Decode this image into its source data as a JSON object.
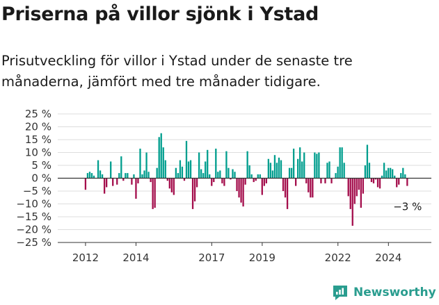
{
  "title": "Priserna på villor sjönk i Ystad",
  "subtitle": "Prisutveckling för villor i Ystad under de senaste tre månaderna, jämfört med tre månader tidigare.",
  "brand": {
    "name": "Newsworthy"
  },
  "colors": {
    "positive": "#009e8e",
    "negative": "#a40e4c",
    "axis": "#333333",
    "grid": "#dddddd",
    "brand": "#2a9d8f"
  },
  "chart_data": {
    "type": "bar",
    "ylabel": "",
    "ylim": [
      -25,
      25
    ],
    "y_ticks": [
      25,
      20,
      15,
      10,
      5,
      0,
      -5,
      -10,
      -15,
      -20,
      -25
    ],
    "y_tick_labels": [
      "25 %",
      "20 %",
      "15 %",
      "10 %",
      "5 %",
      "0 %",
      "−5 %",
      "−10 %",
      "−15 %",
      "−20 %",
      "−25 %"
    ],
    "x_range": [
      2010.9,
      2025.7
    ],
    "x_ticks": [
      2012,
      2014,
      2017,
      2019,
      2022,
      2024
    ],
    "x_tick_labels": [
      "2012",
      "2014",
      "2017",
      "2019",
      "2022",
      "2024"
    ],
    "x_start": 2012,
    "step": 0.0833,
    "values": [
      -4.5,
      2,
      2.5,
      2,
      1,
      0,
      7,
      3,
      1.5,
      -6,
      -3.5,
      0,
      6.5,
      -3,
      0,
      -2.5,
      2,
      8.5,
      -1,
      2,
      2,
      0,
      -2.5,
      1.5,
      -8,
      -2,
      11.5,
      1.5,
      3,
      10,
      2.5,
      -1.5,
      -12,
      -11.5,
      4,
      16,
      17.5,
      12,
      7,
      -1,
      -4,
      -5.5,
      -6.5,
      4,
      2,
      7,
      4.5,
      -1,
      14.5,
      6.5,
      7,
      -12,
      -9,
      -3.5,
      10,
      3.5,
      2,
      6.5,
      11,
      1.5,
      -3,
      -1.5,
      11.5,
      2.5,
      3,
      -2,
      -3,
      10.5,
      4,
      -0.5,
      3.5,
      2.5,
      -5,
      -7.5,
      -9.5,
      -11,
      -2.5,
      10.5,
      5,
      1.5,
      -1.5,
      -1,
      1.5,
      1.5,
      -6.5,
      -3,
      -2,
      7.5,
      6,
      3,
      9,
      6,
      8,
      7,
      -5,
      -7.5,
      -12,
      4,
      4,
      11.5,
      -3,
      7.5,
      12,
      6.5,
      10,
      -2,
      -5.5,
      -7.5,
      -7.5,
      10,
      9.5,
      10,
      -2,
      0,
      -2,
      6,
      6.5,
      -2,
      0,
      2,
      4.5,
      12,
      12,
      6,
      0,
      -7,
      -12,
      -18.5,
      -10,
      -7,
      -4.5,
      -11.5,
      -6,
      5,
      13,
      6,
      -1.5,
      -2,
      -0.5,
      -3.5,
      -4,
      1,
      6,
      3,
      4,
      4,
      3.5,
      1,
      -3.5,
      -2.5,
      2,
      4,
      1.5,
      -3
    ],
    "annotations": [
      {
        "label": "−3 %",
        "value": -3
      }
    ]
  }
}
